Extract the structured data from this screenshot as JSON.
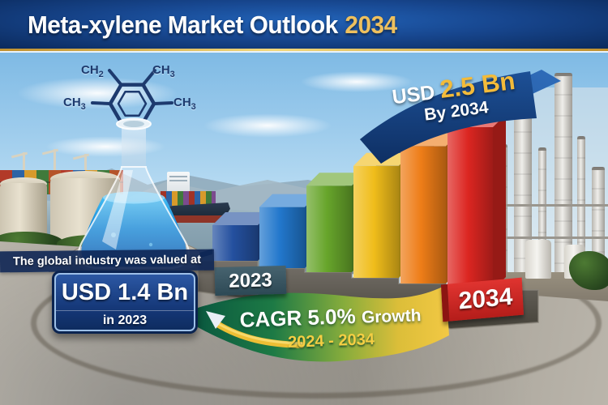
{
  "header": {
    "title_main": "Meta-xylene Market Outlook",
    "title_year": "2034",
    "accent_gold": "#eec05e",
    "bar_blue": "#17468e"
  },
  "molecule": {
    "top_left_base": "CH",
    "top_left_sub": "2",
    "top_right_base": "CH",
    "top_right_sub": "3",
    "left_base": "CH",
    "left_sub": "3",
    "right_base": "CH",
    "right_sub": "3"
  },
  "projection_badge": {
    "currency": "USD",
    "value": "2.5 Bn",
    "subtitle": "By 2034",
    "value_color": "#f3bb3a",
    "ribbon_color": "#143a74"
  },
  "valuation": {
    "intro": "The global industry was valued at",
    "value": "USD 1.4 Bn",
    "period": "in 2023",
    "box_color": "#16397a"
  },
  "cagr_banner": {
    "label": "CAGR 5.0%",
    "suffix": "Growth",
    "range": "2024 - 2034",
    "range_color": "#f5ce43"
  },
  "axis_labels": {
    "start": "2023",
    "end": "2034"
  },
  "chart_data": {
    "type": "bar",
    "title": "Meta-xylene Market Outlook 2034",
    "unit": "USD Bn",
    "categories": [
      "2023",
      "",
      "",
      "",
      "",
      "2034"
    ],
    "values": [
      1.4,
      1.62,
      1.84,
      2.06,
      2.28,
      2.5
    ],
    "labeled_points": {
      "2023": "USD 1.4 Bn",
      "2034": "USD 2.5 Bn"
    },
    "cagr": "5.0%",
    "cagr_period": "2024 - 2034",
    "bar_colors": [
      "#24509f",
      "#2277cc",
      "#67a52b",
      "#f0bd1b",
      "#ee7d18",
      "#dc2621"
    ],
    "ylim": [
      0,
      2.5
    ],
    "legend": "none",
    "grid": false
  }
}
